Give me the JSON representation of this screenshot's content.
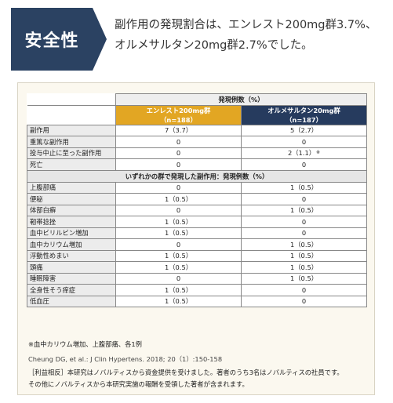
{
  "header": {
    "badge_label": "安全性",
    "headline_line1": "副作用の発現割合は、エンレスト200mg群3.7%、",
    "headline_line2": "オルメサルタン20mg群2.7%でした。"
  },
  "colors": {
    "badge_bg": "#2b4262",
    "group_a": "#e2a623",
    "group_b": "#263b5e",
    "panel_bg": "#fbf8ef"
  },
  "table": {
    "group_header": "発現例数（%）",
    "col_a": {
      "name": "エンレスト200mg群",
      "n": "（n=188）"
    },
    "col_b": {
      "name": "オルメサルタン20mg群",
      "n": "（n=187）"
    },
    "summary_rows": [
      {
        "label": "副作用",
        "a": "7（3.7）",
        "b": "5（2.7）"
      },
      {
        "label": "重篤な副作用",
        "a": "0",
        "b": "0"
      },
      {
        "label": "投与中止に至った副作用",
        "a": "0",
        "b": "2（1.1）",
        "b_mark": "※"
      },
      {
        "label": "死亡",
        "a": "0",
        "b": "0"
      }
    ],
    "section_header": "いずれかの群で発現した副作用：発現例数（%）",
    "detail_rows": [
      {
        "label": "上腹部痛",
        "a": "0",
        "b": "1（0.5）"
      },
      {
        "label": "便秘",
        "a": "1（0.5）",
        "b": "0"
      },
      {
        "label": "体部白癬",
        "a": "0",
        "b": "1（0.5）"
      },
      {
        "label": "靭帯捻挫",
        "a": "1（0.5）",
        "b": "0"
      },
      {
        "label": "血中ビリルビン増加",
        "a": "1（0.5）",
        "b": "0"
      },
      {
        "label": "血中カリウム増加",
        "a": "0",
        "b": "1（0.5）"
      },
      {
        "label": "浮動性めまい",
        "a": "1（0.5）",
        "b": "1（0.5）"
      },
      {
        "label": "頭痛",
        "a": "1（0.5）",
        "b": "1（0.5）"
      },
      {
        "label": "睡眠障害",
        "a": "0",
        "b": "1（0.5）"
      },
      {
        "label": "全身性そう痒症",
        "a": "1（0.5）",
        "b": "0"
      },
      {
        "label": "低血圧",
        "a": "1（0.5）",
        "b": "0"
      }
    ]
  },
  "footnote": "※血中カリウム増加、上腹部痛、各1例",
  "citation": "Cheung DG, et al.: J Clin Hypertens. 2018; 20（1）:150-158",
  "disclosure_line1": "［利益相反］本研究はノバルティスから資金提供を受けました。著者のうち3名はノバルティスの社員です。",
  "disclosure_line2": "その他にノバルティスから本研究実施の報酬を受領した著者が含まれます。"
}
